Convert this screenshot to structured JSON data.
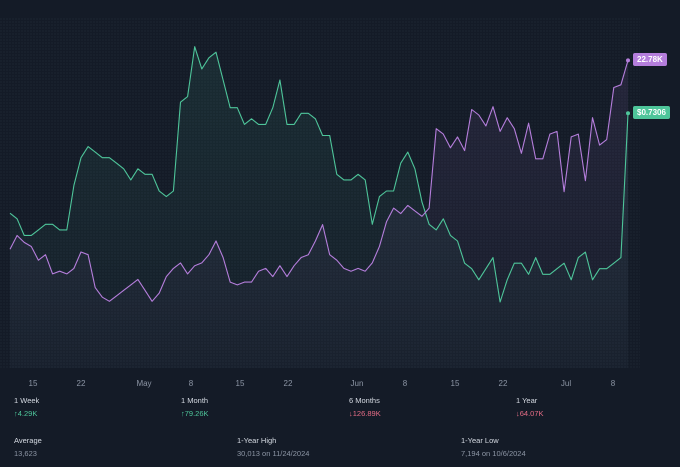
{
  "chart_data": {
    "type": "line",
    "x_ticks": [
      "15",
      "22",
      "May",
      "8",
      "15",
      "22",
      "Jun",
      "8",
      "15",
      "22",
      "Jul",
      "8"
    ],
    "series": [
      {
        "color": "#4ec59a",
        "last_label": "$0.7306",
        "values": [
          0.55,
          0.54,
          0.51,
          0.51,
          0.52,
          0.53,
          0.53,
          0.52,
          0.52,
          0.6,
          0.65,
          0.67,
          0.66,
          0.65,
          0.65,
          0.64,
          0.63,
          0.61,
          0.63,
          0.62,
          0.62,
          0.59,
          0.58,
          0.59,
          0.75,
          0.76,
          0.85,
          0.81,
          0.83,
          0.84,
          0.79,
          0.74,
          0.74,
          0.71,
          0.72,
          0.71,
          0.71,
          0.74,
          0.79,
          0.71,
          0.71,
          0.73,
          0.73,
          0.72,
          0.69,
          0.69,
          0.62,
          0.61,
          0.61,
          0.62,
          0.61,
          0.53,
          0.58,
          0.59,
          0.59,
          0.64,
          0.66,
          0.63,
          0.57,
          0.53,
          0.52,
          0.54,
          0.51,
          0.5,
          0.46,
          0.45,
          0.43,
          0.45,
          0.47,
          0.39,
          0.43,
          0.46,
          0.46,
          0.44,
          0.47,
          0.44,
          0.44,
          0.45,
          0.46,
          0.43,
          0.47,
          0.48,
          0.43,
          0.45,
          0.45,
          0.46,
          0.47,
          0.73
        ]
      },
      {
        "color": "#b57edc",
        "last_label": "22.78K",
        "values": [
          9.0,
          10.0,
          9.5,
          9.2,
          8.2,
          8.6,
          7.2,
          7.4,
          7.2,
          7.6,
          8.8,
          8.6,
          6.2,
          5.5,
          5.2,
          5.6,
          6.0,
          6.4,
          6.8,
          6.0,
          5.2,
          5.8,
          7.0,
          7.6,
          8.0,
          7.2,
          7.8,
          8.0,
          8.6,
          9.6,
          8.4,
          6.6,
          6.4,
          6.6,
          6.6,
          7.4,
          7.6,
          7.0,
          7.8,
          7.0,
          7.8,
          8.4,
          8.6,
          9.6,
          10.8,
          8.6,
          8.2,
          7.6,
          7.4,
          7.6,
          7.4,
          8.0,
          9.2,
          11.0,
          12.0,
          11.6,
          12.2,
          11.8,
          11.4,
          12.0,
          17.8,
          17.4,
          16.4,
          17.2,
          16.2,
          19.2,
          18.8,
          18.0,
          19.4,
          17.6,
          18.6,
          17.8,
          16.0,
          18.2,
          15.6,
          15.6,
          17.4,
          17.6,
          13.2,
          17.2,
          17.4,
          14.0,
          18.6,
          16.6,
          17.0,
          20.8,
          21.0,
          22.78
        ]
      }
    ]
  },
  "stats": [
    {
      "label": "1 Week",
      "value": "↑4.29K",
      "trend": "up"
    },
    {
      "label": "1 Month",
      "value": "↑79.26K",
      "trend": "up"
    },
    {
      "label": "6 Months",
      "value": "↓126.89K",
      "trend": "down"
    },
    {
      "label": "1 Year",
      "value": "↓64.07K",
      "trend": "down"
    },
    {
      "label": "Average",
      "value": "13,623",
      "trend": "neutral"
    },
    {
      "label": "1-Year High",
      "value": "30,013 on 11/24/2024",
      "trend": "neutral"
    },
    {
      "label": "1-Year Low",
      "value": "7,194 on 10/6/2024",
      "trend": "neutral"
    }
  ]
}
